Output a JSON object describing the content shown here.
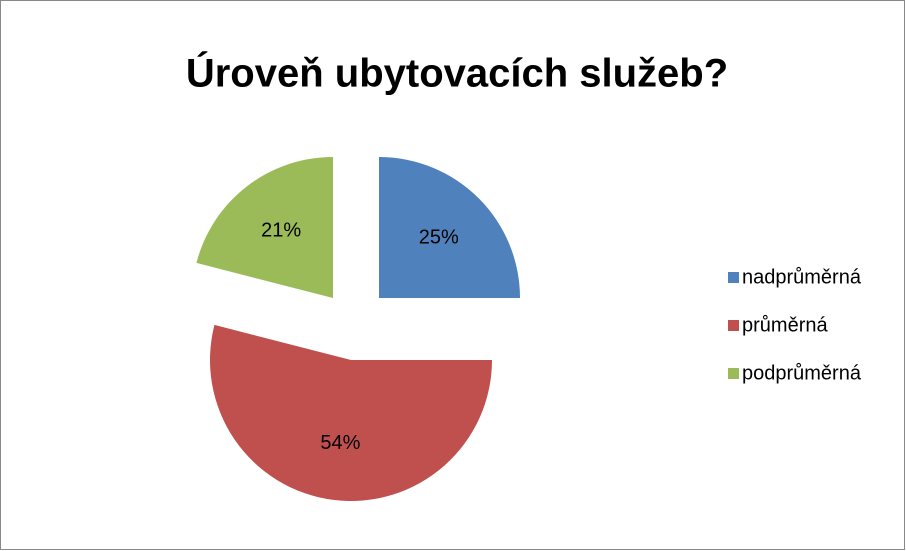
{
  "chart_data": {
    "type": "pie",
    "title": "Úroveň ubytovacích služeb?",
    "categories": [
      "nadprůměrná",
      "průměrná",
      "podprůměrná"
    ],
    "values": [
      25,
      54,
      21
    ],
    "value_labels": [
      "25%",
      "54%",
      "21%"
    ],
    "colors": [
      "#4f81bd",
      "#c0504d",
      "#9bbb59"
    ],
    "legend": "right"
  }
}
